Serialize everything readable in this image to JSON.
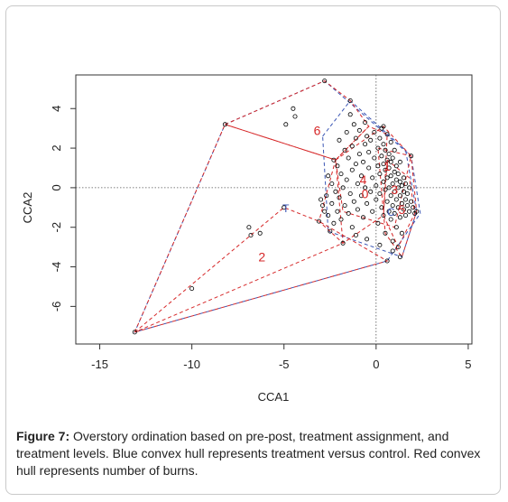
{
  "caption": {
    "label": "Figure 7:",
    "text": " Overstory ordination based on pre-post, treatment assignment, and treatment levels.  Blue convex hull represents treatment versus control.  Red convex hull represents number of burns."
  },
  "chart_data": {
    "type": "scatter",
    "xlabel": "CCA1",
    "ylabel": "CCA2",
    "xlim": [
      -16.3,
      5.2
    ],
    "ylim": [
      -7.9,
      5.7
    ],
    "xticks": [
      -15,
      -10,
      -5,
      0,
      5
    ],
    "yticks": [
      -6,
      -4,
      -2,
      0,
      2,
      4
    ],
    "reference_lines": {
      "x": 0,
      "y": 0,
      "style": "dotted"
    },
    "colors": {
      "points": "#000000",
      "blue_hull": "#3a55b4",
      "red_hull": "#d62728",
      "red_label": "#d62728",
      "blue_label": "#3a55b4"
    },
    "points": [
      [
        -13.1,
        -7.3
      ],
      [
        -10.0,
        -5.1
      ],
      [
        -8.2,
        3.2
      ],
      [
        -6.9,
        -2.0
      ],
      [
        -6.8,
        -2.4
      ],
      [
        -6.3,
        -2.3
      ],
      [
        -5.0,
        -1.0
      ],
      [
        -4.9,
        3.2
      ],
      [
        -4.5,
        4.0
      ],
      [
        -4.4,
        3.6
      ],
      [
        -3.1,
        -1.7
      ],
      [
        -2.8,
        5.4
      ],
      [
        -1.8,
        -2.8
      ],
      [
        -1.4,
        4.4
      ],
      [
        -1.4,
        3.7
      ],
      [
        -1.2,
        3.2
      ],
      [
        -3.0,
        -0.6
      ],
      [
        -2.9,
        -0.9
      ],
      [
        -2.8,
        -1.2
      ],
      [
        -2.7,
        -0.4
      ],
      [
        -2.6,
        -1.4
      ],
      [
        -2.6,
        0.6
      ],
      [
        -2.5,
        -2.2
      ],
      [
        -2.4,
        -0.8
      ],
      [
        -2.4,
        0.2
      ],
      [
        -2.3,
        1.4
      ],
      [
        -2.3,
        -1.8
      ],
      [
        -2.2,
        -0.2
      ],
      [
        -2.1,
        1.1
      ],
      [
        -2.1,
        -1.2
      ],
      [
        -2.0,
        2.4
      ],
      [
        -2.0,
        -0.5
      ],
      [
        -1.9,
        0.7
      ],
      [
        -1.9,
        -1.6
      ],
      [
        -1.8,
        0.0
      ],
      [
        -1.7,
        1.9
      ],
      [
        -1.7,
        -0.9
      ],
      [
        -1.6,
        2.8
      ],
      [
        -1.6,
        0.4
      ],
      [
        -1.5,
        -1.3
      ],
      [
        -1.5,
        1.5
      ],
      [
        -1.4,
        -0.3
      ],
      [
        -1.3,
        2.1
      ],
      [
        -1.3,
        0.9
      ],
      [
        -1.3,
        -2.0
      ],
      [
        -1.2,
        -0.7
      ],
      [
        -1.1,
        1.2
      ],
      [
        -1.1,
        2.5
      ],
      [
        -1.0,
        0.2
      ],
      [
        -1.0,
        -1.1
      ],
      [
        -0.9,
        1.7
      ],
      [
        -0.9,
        2.9
      ],
      [
        -0.8,
        -0.4
      ],
      [
        -0.8,
        0.6
      ],
      [
        -0.7,
        1.3
      ],
      [
        -0.7,
        -1.5
      ],
      [
        -0.6,
        2.2
      ],
      [
        -0.6,
        0.0
      ],
      [
        -0.5,
        2.6
      ],
      [
        -0.5,
        -0.8
      ],
      [
        -0.4,
        1.0
      ],
      [
        -0.4,
        1.8
      ],
      [
        -0.3,
        -0.2
      ],
      [
        -0.3,
        2.4
      ],
      [
        -0.2,
        0.5
      ],
      [
        -0.2,
        -1.2
      ],
      [
        -0.1,
        1.5
      ],
      [
        -0.1,
        2.8
      ],
      [
        0.0,
        0.1
      ],
      [
        0.0,
        -0.6
      ],
      [
        0.1,
        2.0
      ],
      [
        0.1,
        1.1
      ],
      [
        0.1,
        -1.8
      ],
      [
        0.2,
        0.7
      ],
      [
        0.2,
        2.5
      ],
      [
        0.2,
        -0.3
      ],
      [
        0.3,
        1.6
      ],
      [
        0.3,
        -1.0
      ],
      [
        0.3,
        3.0
      ],
      [
        0.4,
        0.3
      ],
      [
        0.4,
        1.2
      ],
      [
        0.4,
        -1.4
      ],
      [
        0.4,
        2.2
      ],
      [
        0.5,
        -0.1
      ],
      [
        0.5,
        0.9
      ],
      [
        0.5,
        1.9
      ],
      [
        0.5,
        -2.3
      ],
      [
        0.6,
        0.5
      ],
      [
        0.6,
        -0.7
      ],
      [
        0.6,
        1.4
      ],
      [
        0.6,
        2.7
      ],
      [
        0.7,
        0.0
      ],
      [
        0.7,
        -1.2
      ],
      [
        0.7,
        1.0
      ],
      [
        0.7,
        1.7
      ],
      [
        0.8,
        -0.4
      ],
      [
        0.8,
        0.6
      ],
      [
        0.8,
        -1.6
      ],
      [
        0.8,
        1.3
      ],
      [
        0.8,
        2.3
      ],
      [
        0.9,
        0.2
      ],
      [
        0.9,
        -0.9
      ],
      [
        0.9,
        1.5
      ],
      [
        0.9,
        -2.7
      ],
      [
        1.0,
        -0.2
      ],
      [
        1.0,
        0.8
      ],
      [
        1.0,
        -1.3
      ],
      [
        1.0,
        1.9
      ],
      [
        1.1,
        0.4
      ],
      [
        1.1,
        -0.6
      ],
      [
        1.1,
        1.1
      ],
      [
        1.1,
        -2.0
      ],
      [
        1.2,
        0.0
      ],
      [
        1.2,
        -1.0
      ],
      [
        1.2,
        0.7
      ],
      [
        1.2,
        -3.0
      ],
      [
        1.3,
        -0.4
      ],
      [
        1.3,
        0.3
      ],
      [
        1.3,
        -1.5
      ],
      [
        1.3,
        1.3
      ],
      [
        1.4,
        -0.8
      ],
      [
        1.4,
        0.1
      ],
      [
        1.4,
        -2.3
      ],
      [
        1.5,
        -0.2
      ],
      [
        1.5,
        -1.1
      ],
      [
        1.5,
        0.5
      ],
      [
        1.6,
        -0.6
      ],
      [
        1.6,
        -1.4
      ],
      [
        1.6,
        0.2
      ],
      [
        1.7,
        -0.9
      ],
      [
        1.7,
        -0.3
      ],
      [
        1.8,
        -1.2
      ],
      [
        1.8,
        0.0
      ],
      [
        1.9,
        -0.7
      ],
      [
        2.0,
        -1.0
      ],
      [
        2.1,
        -1.3
      ],
      [
        2.2,
        -1.2
      ],
      [
        0.6,
        -3.7
      ],
      [
        1.3,
        -3.5
      ],
      [
        0.9,
        -3.2
      ],
      [
        0.2,
        -2.9
      ],
      [
        -0.5,
        -2.6
      ],
      [
        -1.1,
        -2.4
      ],
      [
        0.4,
        3.1
      ],
      [
        -0.6,
        3.3
      ],
      [
        1.9,
        1.6
      ]
    ],
    "blue_hulls": [
      [
        [
          -8.2,
          3.2
        ],
        [
          -2.8,
          5.4
        ],
        [
          1.9,
          1.6
        ],
        [
          2.4,
          -1.3
        ],
        [
          0.6,
          -3.7
        ],
        [
          -13.1,
          -7.3
        ],
        [
          -8.2,
          3.2
        ]
      ],
      [
        [
          -2.9,
          2.6
        ],
        [
          -1.4,
          4.4
        ],
        [
          1.6,
          1.9
        ],
        [
          2.2,
          -1.2
        ],
        [
          1.4,
          -3.5
        ],
        [
          -2.6,
          -2.2
        ],
        [
          -2.9,
          2.6
        ]
      ]
    ],
    "red_hulls": [
      [
        [
          -13.1,
          -7.3
        ],
        [
          -8.2,
          3.2
        ],
        [
          -2.2,
          1.4
        ],
        [
          -1.8,
          -2.8
        ],
        [
          -13.1,
          -7.3
        ]
      ],
      [
        [
          -13.1,
          -7.3
        ],
        [
          -5.0,
          -1.0
        ],
        [
          -3.1,
          -1.7
        ],
        [
          0.6,
          -3.7
        ],
        [
          -13.1,
          -7.3
        ]
      ],
      [
        [
          -8.2,
          3.2
        ],
        [
          -2.8,
          5.4
        ],
        [
          -1.4,
          4.4
        ],
        [
          -0.4,
          3.1
        ],
        [
          -2.2,
          1.4
        ],
        [
          -8.2,
          3.2
        ]
      ],
      [
        [
          -2.2,
          1.4
        ],
        [
          -0.4,
          3.1
        ],
        [
          0.6,
          2.7
        ],
        [
          0.4,
          -1.4
        ],
        [
          -1.8,
          -2.8
        ],
        [
          -3.1,
          -1.7
        ],
        [
          -2.2,
          1.4
        ]
      ],
      [
        [
          -2.2,
          1.4
        ],
        [
          0.4,
          3.1
        ],
        [
          1.9,
          1.6
        ],
        [
          1.0,
          -2.0
        ],
        [
          -1.8,
          -1.2
        ],
        [
          -2.2,
          1.4
        ]
      ],
      [
        [
          0.1,
          2.0
        ],
        [
          1.9,
          1.6
        ],
        [
          2.2,
          -1.2
        ],
        [
          1.4,
          -3.5
        ],
        [
          0.5,
          -2.3
        ],
        [
          0.1,
          2.0
        ]
      ],
      [
        [
          0.6,
          1.4
        ],
        [
          1.8,
          0.5
        ],
        [
          2.1,
          -1.3
        ],
        [
          1.2,
          -3.0
        ],
        [
          0.4,
          -1.4
        ],
        [
          0.6,
          1.4
        ]
      ]
    ],
    "red_labels": [
      {
        "text": "6",
        "x": -3.2,
        "y": 2.9
      },
      {
        "text": "2",
        "x": -6.2,
        "y": -3.5
      },
      {
        "text": "4",
        "x": -0.7,
        "y": 0.4
      },
      {
        "text": "0",
        "x": -0.6,
        "y": -0.3
      },
      {
        "text": "1",
        "x": 0.6,
        "y": 1.1
      },
      {
        "text": "3",
        "x": 1.0,
        "y": -0.1
      },
      {
        "text": "5",
        "x": 1.4,
        "y": -1.1
      }
    ],
    "blue_labels": [
      {
        "text": "T",
        "x": -4.9,
        "y": -1.0
      },
      {
        "text": "C",
        "x": 0.8,
        "y": -1.2
      }
    ]
  }
}
